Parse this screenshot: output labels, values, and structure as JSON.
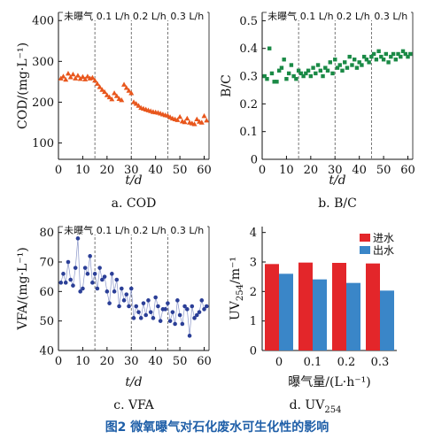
{
  "figure_caption": "图2  微氧曝气对石化废水可生化性的影响",
  "chart_data": [
    {
      "id": "cod",
      "type": "scatter",
      "marker": "triangle",
      "color": "#e8561c",
      "subtitle": "a. COD",
      "xlabel": "t/d",
      "ylabel": "COD/(mg·L⁻¹)",
      "xlim": [
        0,
        62
      ],
      "ylim": [
        60,
        420
      ],
      "xticks": [
        0,
        10,
        20,
        30,
        40,
        50,
        60
      ],
      "yticks": [
        100,
        200,
        300,
        400
      ],
      "phase_boundaries": [
        15,
        30,
        45
      ],
      "phases": [
        "未曝气",
        "0.1 L/h",
        "0.2 L/h",
        "0.3 L/h"
      ],
      "x": [
        1,
        2,
        3,
        4,
        5,
        6,
        7,
        8,
        9,
        10,
        11,
        12,
        13,
        14,
        15,
        16,
        17,
        18,
        19,
        20,
        21,
        22,
        23,
        24,
        25,
        26,
        27,
        28,
        29,
        30,
        31,
        32,
        33,
        34,
        35,
        36,
        37,
        38,
        39,
        40,
        41,
        42,
        43,
        44,
        45,
        46,
        47,
        48,
        49,
        50,
        51,
        52,
        53,
        54,
        55,
        56,
        57,
        58,
        59,
        60,
        61
      ],
      "y": [
        258,
        263,
        255,
        270,
        261,
        268,
        258,
        265,
        257,
        262,
        256,
        263,
        258,
        260,
        253,
        245,
        237,
        230,
        225,
        217,
        212,
        207,
        222,
        215,
        208,
        205,
        243,
        235,
        228,
        222,
        200,
        196,
        191,
        186,
        184,
        182,
        180,
        178,
        176,
        175,
        174,
        172,
        170,
        168,
        167,
        163,
        160,
        158,
        156,
        164,
        153,
        151,
        160,
        150,
        148,
        146,
        158,
        152,
        150,
        166,
        155
      ]
    },
    {
      "id": "bc",
      "type": "scatter",
      "marker": "square",
      "color": "#1a8a46",
      "subtitle": "b. B/C",
      "xlabel": "t/d",
      "ylabel": "B/C",
      "xlim": [
        0,
        62
      ],
      "ylim": [
        0,
        0.53
      ],
      "xticks": [
        0,
        10,
        20,
        30,
        40,
        50,
        60
      ],
      "yticks": [
        0,
        0.1,
        0.2,
        0.3,
        0.4,
        0.5
      ],
      "phase_boundaries": [
        15,
        30,
        45
      ],
      "phases": [
        "未曝气",
        "0.1 L/h",
        "0.2 L/h",
        "0.3 L/h"
      ],
      "x": [
        1,
        2,
        3,
        4,
        5,
        6,
        7,
        8,
        9,
        10,
        11,
        12,
        13,
        14,
        15,
        16,
        17,
        18,
        19,
        20,
        21,
        22,
        23,
        24,
        25,
        26,
        27,
        28,
        29,
        30,
        31,
        32,
        33,
        34,
        35,
        36,
        37,
        38,
        39,
        40,
        41,
        42,
        43,
        44,
        45,
        46,
        47,
        48,
        49,
        50,
        51,
        52,
        53,
        54,
        55,
        56,
        57,
        58,
        59,
        60,
        61
      ],
      "y": [
        0.3,
        0.29,
        0.4,
        0.31,
        0.28,
        0.28,
        0.32,
        0.33,
        0.36,
        0.29,
        0.31,
        0.34,
        0.3,
        0.29,
        0.32,
        0.31,
        0.3,
        0.31,
        0.32,
        0.3,
        0.33,
        0.31,
        0.34,
        0.32,
        0.3,
        0.33,
        0.32,
        0.35,
        0.31,
        0.36,
        0.33,
        0.34,
        0.32,
        0.35,
        0.33,
        0.37,
        0.34,
        0.36,
        0.33,
        0.35,
        0.34,
        0.37,
        0.36,
        0.35,
        0.37,
        0.38,
        0.36,
        0.39,
        0.37,
        0.36,
        0.38,
        0.35,
        0.37,
        0.38,
        0.36,
        0.38,
        0.37,
        0.39,
        0.38,
        0.37,
        0.38
      ]
    },
    {
      "id": "vfa",
      "type": "line",
      "marker": "circle",
      "color": "#2b3f97",
      "subtitle": "c. VFA",
      "xlabel": "t/d",
      "ylabel": "VFA/(mg·L⁻¹)",
      "xlim": [
        0,
        62
      ],
      "ylim": [
        40,
        82
      ],
      "xticks": [
        0,
        10,
        20,
        30,
        40,
        50,
        60
      ],
      "yticks": [
        40,
        50,
        60,
        70,
        80
      ],
      "phase_boundaries": [
        15,
        30,
        45
      ],
      "phases": [
        "未曝气",
        "0.1 L/h",
        "0.2 L/h",
        "0.3 L/h"
      ],
      "x": [
        1,
        2,
        3,
        4,
        5,
        6,
        7,
        8,
        9,
        10,
        11,
        12,
        13,
        14,
        15,
        16,
        17,
        18,
        19,
        20,
        21,
        22,
        23,
        24,
        25,
        26,
        27,
        28,
        29,
        30,
        31,
        32,
        33,
        34,
        35,
        36,
        37,
        38,
        39,
        40,
        41,
        42,
        43,
        44,
        45,
        46,
        47,
        48,
        49,
        50,
        51,
        52,
        53,
        54,
        55,
        56,
        57,
        58,
        59,
        60,
        61
      ],
      "y": [
        63,
        66,
        63,
        70,
        64,
        62,
        68,
        78,
        60,
        61,
        68,
        66,
        72,
        63,
        66,
        61,
        68,
        64,
        65,
        60,
        56,
        66,
        60,
        64,
        55,
        61,
        57,
        59,
        55,
        61,
        51,
        55,
        53,
        51,
        56,
        52,
        57,
        53,
        51,
        58,
        55,
        50,
        54,
        54,
        56,
        50,
        53,
        49,
        57,
        52,
        49,
        55,
        54,
        45,
        55,
        51,
        52,
        53,
        57,
        54,
        55
      ]
    },
    {
      "id": "uv",
      "type": "bar",
      "subtitle": "d. UV",
      "subtitle_sub": "254",
      "xlabel": "曝气量/(L·h⁻¹)",
      "ylabel": "UV",
      "ylabel_sub": "254",
      "ylabel_unit": "/m⁻¹",
      "ylim": [
        0,
        4.2
      ],
      "yticks": [
        0,
        1,
        2,
        3,
        4
      ],
      "categories": [
        "0",
        "0.1",
        "0.2",
        "0.3"
      ],
      "series": [
        {
          "name": "进水",
          "color": "#e3262a",
          "values": [
            2.93,
            2.98,
            2.97,
            2.95
          ]
        },
        {
          "name": "出水",
          "color": "#3a86c8",
          "values": [
            2.6,
            2.41,
            2.29,
            2.03
          ]
        }
      ]
    }
  ]
}
